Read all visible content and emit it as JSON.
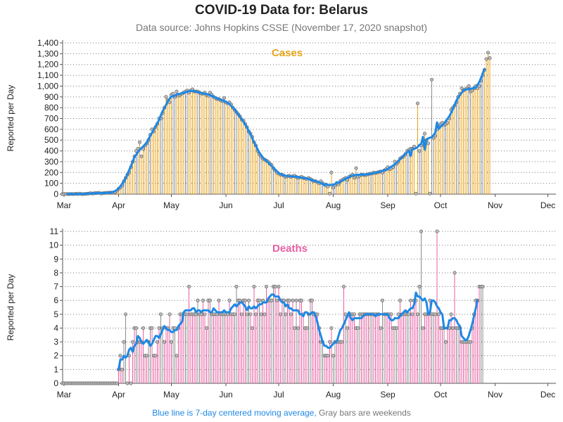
{
  "title": "COVID-19 Data for: Belarus",
  "subtitle": "Data source: Johns Hopkins CSSE (November 17, 2020 snapshot)",
  "footer": {
    "blue_text": "Blue line is 7-day centered moving average,",
    "gray_text": "Gray bars are weekends"
  },
  "colors": {
    "cases": "#e8a51c",
    "deaths": "#e85fa3",
    "weekend": "#8c8c8c",
    "average": "#1e88e5",
    "marker": "#bbbbbb"
  },
  "chart_data": [
    {
      "type": "bar",
      "title": "Cases",
      "ylabel": "Reported per Day",
      "ylim": [
        0,
        1400
      ],
      "yticks": [
        "0",
        "100",
        "200",
        "300",
        "400",
        "500",
        "600",
        "700",
        "800",
        "900",
        "1,000",
        "1,100",
        "1,200",
        "1,300",
        "1,400"
      ],
      "xticks": [
        "Mar",
        "Apr",
        "May",
        "Jun",
        "Jul",
        "Aug",
        "Sep",
        "Oct",
        "Nov",
        "Dec"
      ],
      "grid": true,
      "x_start": "2020-02-29",
      "values": [
        0,
        1,
        1,
        0,
        0,
        2,
        0,
        1,
        3,
        0,
        5,
        0,
        0,
        2,
        3,
        5,
        8,
        5,
        7,
        10,
        10,
        12,
        5,
        8,
        10,
        12,
        12,
        14,
        15,
        15,
        18,
        30,
        50,
        60,
        80,
        120,
        150,
        180,
        200,
        250,
        300,
        350,
        400,
        420,
        480,
        350,
        420,
        450,
        470,
        500,
        550,
        600,
        580,
        620,
        650,
        700,
        700,
        750,
        800,
        900,
        870,
        850,
        920,
        930,
        900,
        950,
        910,
        920,
        930,
        940,
        950,
        960,
        940,
        960,
        970,
        950,
        950,
        950,
        940,
        930,
        930,
        940,
        920,
        910,
        940,
        920,
        900,
        890,
        880,
        880,
        870,
        860,
        890,
        850,
        840,
        850,
        830,
        800,
        780,
        760,
        740,
        720,
        690,
        680,
        650,
        620,
        580,
        560,
        530,
        480,
        450,
        400,
        370,
        350,
        330,
        320,
        310,
        300,
        280,
        270,
        240,
        220,
        200,
        190,
        180,
        180,
        170,
        160,
        165,
        170,
        160,
        165,
        170,
        160,
        150,
        155,
        160,
        150,
        145,
        140,
        150,
        140,
        130,
        120,
        120,
        110,
        100,
        120,
        100,
        90,
        80,
        70,
        5,
        200,
        60,
        80,
        100,
        90,
        120,
        130,
        140,
        150,
        130,
        160,
        170,
        180,
        150,
        240,
        160,
        170,
        180,
        180,
        175,
        180,
        185,
        190,
        190,
        200,
        195,
        200,
        205,
        210,
        200,
        220,
        230,
        250,
        230,
        240,
        250,
        300,
        280,
        300,
        330,
        340,
        350,
        370,
        400,
        410,
        420,
        420,
        440,
        5,
        840,
        400,
        450,
        500,
        560,
        500,
        470,
        5,
        1060,
        520,
        540,
        600,
        620,
        650,
        660,
        640,
        650,
        660,
        700,
        780,
        800,
        820,
        850,
        900,
        930,
        980,
        960,
        970,
        980,
        1000,
        950,
        960,
        980,
        1000,
        980,
        1000,
        1050,
        1100,
        1150,
        1250,
        1310,
        1260
      ]
    },
    {
      "type": "bar",
      "title": "Deaths",
      "ylabel": "Reported per Day",
      "ylim": [
        0,
        11
      ],
      "yticks": [
        "0",
        "1",
        "2",
        "3",
        "4",
        "5",
        "6",
        "7",
        "8",
        "9",
        "10",
        "11"
      ],
      "xticks": [
        "Mar",
        "Apr",
        "May",
        "Jun",
        "Jul",
        "Aug",
        "Sep",
        "Oct",
        "Nov",
        "Dec"
      ],
      "grid": true,
      "x_start": "2020-02-29",
      "values": [
        0,
        0,
        0,
        0,
        0,
        0,
        0,
        0,
        0,
        0,
        0,
        0,
        0,
        0,
        0,
        0,
        0,
        0,
        0,
        0,
        0,
        0,
        0,
        0,
        0,
        0,
        0,
        0,
        0,
        0,
        0,
        0,
        1,
        2,
        1,
        3,
        5,
        0,
        2,
        0,
        3,
        4,
        4,
        3,
        3,
        3,
        4,
        2,
        2,
        3,
        4,
        4,
        2,
        2,
        3,
        4,
        5,
        4,
        3,
        4,
        4,
        5,
        3,
        4,
        4,
        2,
        4,
        5,
        5,
        5,
        5,
        5,
        7,
        5,
        5,
        5,
        5,
        6,
        5,
        5,
        6,
        5,
        4,
        6,
        6,
        5,
        5,
        5,
        5,
        6,
        5,
        5,
        5,
        5,
        5,
        6,
        5,
        5,
        5,
        7,
        6,
        6,
        5,
        6,
        6,
        5,
        6,
        5,
        4,
        7,
        5,
        6,
        6,
        5,
        6,
        5,
        7,
        6,
        6,
        6,
        7,
        7,
        6,
        7,
        5,
        6,
        6,
        5,
        6,
        6,
        5,
        6,
        4,
        6,
        4,
        6,
        6,
        5,
        4,
        4,
        5,
        6,
        6,
        5,
        5,
        5,
        4,
        3,
        3,
        2,
        2,
        2,
        3,
        4,
        2,
        3,
        3,
        3,
        3,
        3,
        7,
        5,
        4,
        5,
        5,
        5,
        5,
        4,
        4,
        5,
        5,
        5,
        5,
        5,
        5,
        5,
        5,
        5,
        5,
        5,
        5,
        4,
        6,
        5,
        5,
        5,
        5,
        5,
        4,
        4,
        4,
        5,
        6,
        5,
        5,
        5,
        5,
        5,
        6,
        5,
        6,
        6,
        5,
        7,
        11,
        4,
        5,
        5,
        5,
        6,
        5,
        5,
        5,
        11,
        5,
        4,
        4,
        4,
        3,
        4,
        4,
        5,
        4,
        8,
        4,
        4,
        4,
        3,
        3,
        3,
        3,
        3,
        3,
        4,
        5,
        6,
        6,
        7,
        7,
        7
      ]
    }
  ]
}
